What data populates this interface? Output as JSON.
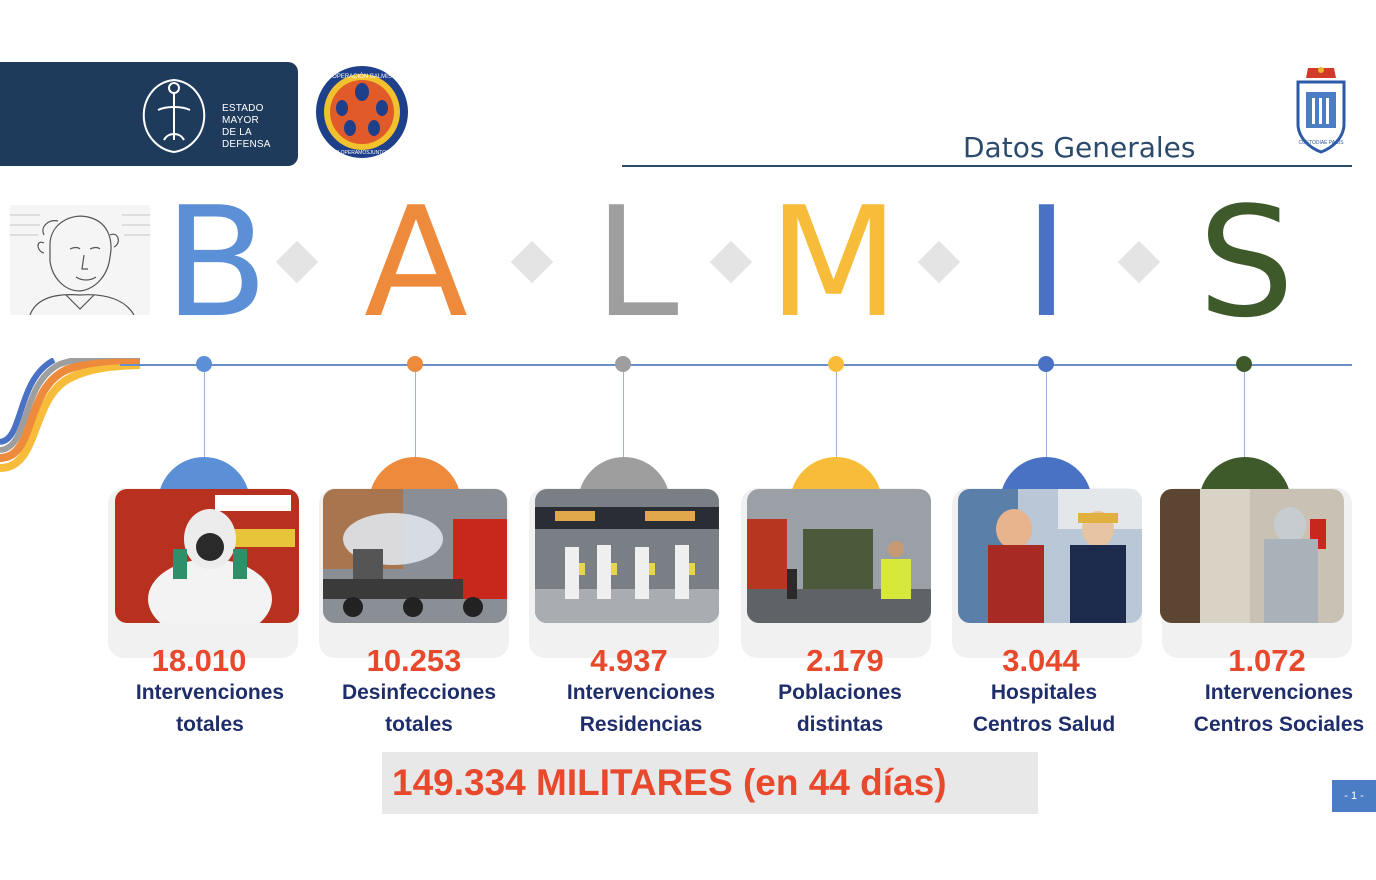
{
  "header": {
    "emad_lines": [
      "ESTADO",
      "MAYOR",
      "DE LA",
      "DEFENSA"
    ],
    "section_title": "Datos Generales",
    "army_crest_motto": "CUSTODIAE PACIS",
    "badge_text_top": "OPERACIÓN BALMIS",
    "badge_text_bottom": "ELOPERAMOSJUNTOS"
  },
  "letters": [
    {
      "char": "B",
      "color": "#5b8fd6"
    },
    {
      "char": "A",
      "color": "#ee8a3c"
    },
    {
      "char": "L",
      "color": "#9e9e9e"
    },
    {
      "char": "M",
      "color": "#f7bd3a"
    },
    {
      "char": "I",
      "color": "#4a72c4"
    },
    {
      "char": "S",
      "color": "#3e5a2b"
    }
  ],
  "stats": [
    {
      "number": "18.010",
      "line1": "Intervenciones",
      "line2": "totales",
      "color": "#5b8fd6",
      "icon": "decontamination-suit-photo"
    },
    {
      "number": "10.253",
      "line1": "Desinfecciones",
      "line2": "totales",
      "color": "#ee8a3c",
      "icon": "disinfection-truck-photo"
    },
    {
      "number": "4.937",
      "line1": "Intervenciones",
      "line2": "Residencias",
      "color": "#9e9e9e",
      "icon": "station-team-photo"
    },
    {
      "number": "2.179",
      "line1": "Poblaciones",
      "line2": "distintas",
      "color": "#f7bd3a",
      "icon": "military-vehicle-photo"
    },
    {
      "number": "3.044",
      "line1": "Hospitales",
      "line2": "Centros Salud",
      "color": "#4a72c4",
      "icon": "hospital-support-photo"
    },
    {
      "number": "1.072",
      "line1": "Intervenciones",
      "line2": "Centros Sociales",
      "color": "#3e5a2b",
      "icon": "social-center-photo"
    }
  ],
  "total": "149.334 MILITARES (en 44 días)",
  "page_number": "- 1 -"
}
